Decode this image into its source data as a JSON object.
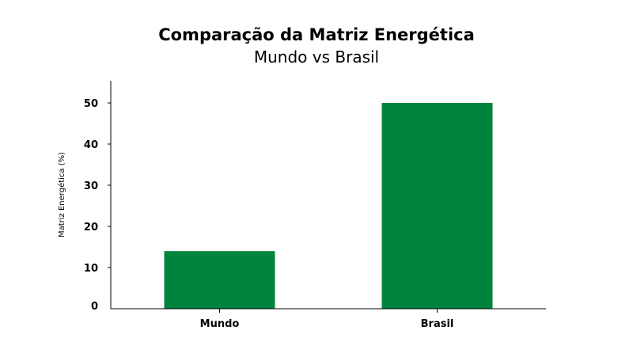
{
  "chart_data": {
    "type": "bar",
    "title": "Comparação da Matriz Energética",
    "subtitle": "Mundo vs Brasil",
    "xlabel": "",
    "ylabel": "Matriz Energética (%)",
    "categories": [
      "Mundo",
      "Brasil"
    ],
    "values": [
      14,
      50
    ],
    "ylim": [
      0,
      55
    ],
    "yticks": [
      0,
      10,
      20,
      30,
      40,
      50
    ],
    "bar_color": "#00843d",
    "grid": false,
    "legend": "none"
  }
}
